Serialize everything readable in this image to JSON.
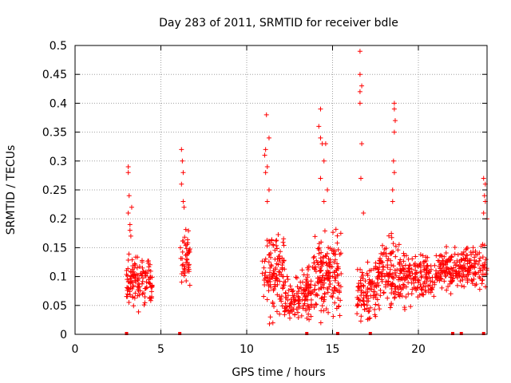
{
  "colors": {
    "points": "#ff0000",
    "grid": "#a0a0a0",
    "axis": "#000000"
  },
  "chart_data": {
    "type": "scatter",
    "title": "Day 283 of 2011, SRMTID for receiver bdle",
    "xlabel": "GPS time / hours",
    "ylabel": "SRMTID / TECUs",
    "xlim": [
      0,
      24
    ],
    "ylim": [
      0,
      0.5
    ],
    "grid": true,
    "marker": "+",
    "x_ticks": [
      0,
      5,
      10,
      15,
      20
    ],
    "x_tick_labels": [
      "0",
      "5",
      "10",
      "15",
      "20"
    ],
    "y_ticks": [
      0,
      0.05,
      0.1,
      0.15,
      0.2,
      0.25,
      0.3,
      0.35,
      0.4,
      0.45,
      0.5
    ],
    "y_tick_labels": [
      "0",
      "0.05",
      "0.1",
      "0.15",
      "0.2",
      "0.25",
      "0.3",
      "0.35",
      "0.4",
      "0.45",
      "0.5"
    ],
    "series": [
      {
        "name": "bdle",
        "clusters": [
          {
            "x_range": [
              3.0,
              4.5
            ],
            "y_range": [
              0.03,
              0.16
            ],
            "count": 130,
            "extra_points": [
              [
                3.1,
                0.29
              ],
              [
                3.1,
                0.28
              ],
              [
                3.15,
                0.24
              ],
              [
                3.1,
                0.21
              ],
              [
                3.2,
                0.19
              ],
              [
                3.3,
                0.22
              ],
              [
                3.2,
                0.18
              ],
              [
                3.25,
                0.17
              ]
            ]
          },
          {
            "x_range": [
              6.1,
              6.7
            ],
            "y_range": [
              0.06,
              0.2
            ],
            "count": 45,
            "extra_points": [
              [
                6.2,
                0.32
              ],
              [
                6.25,
                0.3
              ],
              [
                6.3,
                0.28
              ],
              [
                6.2,
                0.26
              ],
              [
                6.3,
                0.23
              ],
              [
                6.35,
                0.22
              ]
            ]
          },
          {
            "x_range": [
              10.9,
              12.2
            ],
            "y_range": [
              0.0,
              0.2
            ],
            "count": 120,
            "extra_points": [
              [
                11.15,
                0.38
              ],
              [
                11.3,
                0.34
              ],
              [
                11.1,
                0.32
              ],
              [
                11.05,
                0.31
              ],
              [
                11.2,
                0.29
              ],
              [
                11.1,
                0.28
              ],
              [
                11.3,
                0.25
              ],
              [
                11.2,
                0.23
              ]
            ]
          },
          {
            "x_range": [
              12.2,
              13.8
            ],
            "y_range": [
              0.0,
              0.13
            ],
            "count": 130,
            "extra_points": []
          },
          {
            "x_range": [
              13.8,
              15.5
            ],
            "y_range": [
              0.0,
              0.2
            ],
            "count": 170,
            "extra_points": [
              [
                14.3,
                0.39
              ],
              [
                14.2,
                0.36
              ],
              [
                14.3,
                0.34
              ],
              [
                14.4,
                0.33
              ],
              [
                14.6,
                0.33
              ],
              [
                14.5,
                0.3
              ],
              [
                14.3,
                0.27
              ],
              [
                14.7,
                0.25
              ],
              [
                14.5,
                0.23
              ]
            ]
          },
          {
            "x_range": [
              16.4,
              17.7
            ],
            "y_range": [
              0.0,
              0.15
            ],
            "count": 110,
            "extra_points": [
              [
                16.6,
                0.49
              ],
              [
                16.6,
                0.45
              ],
              [
                16.7,
                0.43
              ],
              [
                16.6,
                0.42
              ],
              [
                16.6,
                0.4
              ],
              [
                16.7,
                0.33
              ],
              [
                16.65,
                0.27
              ],
              [
                16.8,
                0.21
              ]
            ]
          },
          {
            "x_range": [
              17.7,
              19.0
            ],
            "y_range": [
              0.02,
              0.2
            ],
            "count": 120,
            "extra_points": [
              [
                18.6,
                0.4
              ],
              [
                18.6,
                0.39
              ],
              [
                18.65,
                0.37
              ],
              [
                18.6,
                0.35
              ],
              [
                18.55,
                0.3
              ],
              [
                18.6,
                0.28
              ],
              [
                18.5,
                0.25
              ],
              [
                18.5,
                0.23
              ]
            ]
          },
          {
            "x_range": [
              19.0,
              21.0
            ],
            "y_range": [
              0.04,
              0.16
            ],
            "count": 150,
            "extra_points": []
          },
          {
            "x_range": [
              21.0,
              22.5
            ],
            "y_range": [
              0.06,
              0.16
            ],
            "count": 120,
            "extra_points": []
          },
          {
            "x_range": [
              22.5,
              24.0
            ],
            "y_range": [
              0.05,
              0.18
            ],
            "count": 110,
            "extra_points": [
              [
                23.8,
                0.27
              ],
              [
                23.9,
                0.26
              ],
              [
                23.85,
                0.24
              ],
              [
                23.9,
                0.23
              ],
              [
                23.8,
                0.21
              ],
              [
                24.0,
                0.2
              ]
            ]
          }
        ],
        "baseline_markers_x": [
          3.0,
          6.1,
          13.5,
          15.3,
          17.2,
          22.0,
          22.5,
          23.8
        ]
      }
    ]
  }
}
